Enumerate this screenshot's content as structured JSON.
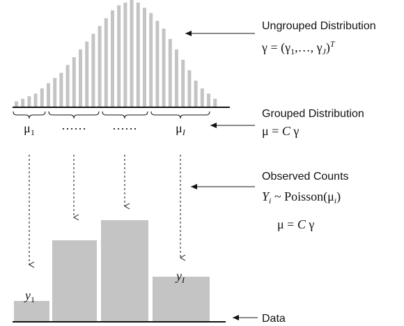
{
  "ungrouped": {
    "title": "Ungrouped Distribution",
    "formula_lhs": "γ = (γ",
    "formula_sub1": "1",
    "formula_mid": ",…, γ",
    "formula_subJ": "J",
    "formula_rhs": ")",
    "formula_sup": "T",
    "bar_values": [
      2,
      3,
      4,
      5,
      7,
      9,
      11,
      13,
      16,
      19,
      22,
      25,
      28,
      31,
      34,
      37,
      39,
      40,
      41,
      40,
      38,
      36,
      33,
      30,
      26,
      22,
      18,
      14,
      10,
      7,
      5,
      3
    ]
  },
  "grouped": {
    "title": "Grouped Distribution",
    "formula_lhs": "μ = ",
    "formula_C": "C",
    "formula_gamma": " γ",
    "group_labels": [
      {
        "main": "μ",
        "sub": "1"
      },
      {
        "main": "……",
        "sub": ""
      },
      {
        "main": "……",
        "sub": ""
      },
      {
        "main": "μ",
        "sub": "I"
      }
    ]
  },
  "observed": {
    "title": "Observed Counts",
    "formula_Y": "Y",
    "formula_Ysub": "i",
    "formula_tilde": " ~ Poisson(μ",
    "formula_musub": "i",
    "formula_close": ")",
    "formula2_lhs": "μ = ",
    "formula2_C": "C",
    "formula2_gamma": " γ"
  },
  "data_bars": {
    "values": [
      1.0,
      4.0,
      5.0,
      2.2
    ],
    "labels": [
      {
        "main": "y",
        "sub": "1"
      },
      {
        "main": "",
        "sub": ""
      },
      {
        "main": "",
        "sub": ""
      },
      {
        "main": "y",
        "sub": "I"
      }
    ]
  },
  "data_label": "Data",
  "colors": {
    "bar": "#c4c4c4",
    "ink": "#111111",
    "background": "#ffffff"
  }
}
